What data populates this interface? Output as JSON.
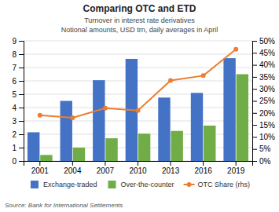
{
  "chart_data": {
    "type": "bar",
    "title": "Comparing OTC and ETD",
    "subtitle": [
      "Turnover in interest rate derivatives",
      "Notional amounts, USD trn, daily averages in April"
    ],
    "source": "Source: Bank for International Settlements",
    "categories": [
      "2001",
      "2004",
      "2007",
      "2010",
      "2013",
      "2016",
      "2019"
    ],
    "series": [
      {
        "name": "Exchange-traded",
        "type": "bar",
        "color": "#4472C4",
        "values": [
          2.15,
          4.5,
          6.05,
          7.65,
          4.75,
          5.1,
          7.7
        ]
      },
      {
        "name": "Over-the-counter",
        "type": "bar",
        "color": "#70AD47",
        "values": [
          0.45,
          1.0,
          1.7,
          2.05,
          2.25,
          2.65,
          6.5
        ]
      },
      {
        "name": "OTC Share (rhs)",
        "type": "line",
        "axis": "y2",
        "marker": "circle",
        "color": "#ED7D31",
        "values": [
          0.19,
          0.18,
          0.22,
          0.21,
          0.335,
          0.355,
          0.465
        ]
      }
    ],
    "ylim": [
      0,
      9
    ],
    "yticks": [
      0,
      1,
      2,
      3,
      4,
      5,
      6,
      7,
      8,
      9
    ],
    "y2lim": [
      0,
      0.5
    ],
    "y2ticks": [
      {
        "value": 0.0,
        "label": "0%"
      },
      {
        "value": 0.05,
        "label": "5%"
      },
      {
        "value": 0.1,
        "label": "10%"
      },
      {
        "value": 0.15,
        "label": "15%"
      },
      {
        "value": 0.2,
        "label": "20%"
      },
      {
        "value": 0.25,
        "label": "25%"
      },
      {
        "value": 0.3,
        "label": "30%"
      },
      {
        "value": 0.35,
        "label": "35%"
      },
      {
        "value": 0.4,
        "label": "40%"
      },
      {
        "value": 0.45,
        "label": "45%"
      },
      {
        "value": 0.5,
        "label": "50%"
      }
    ],
    "grid": true,
    "legend": "bottom"
  }
}
